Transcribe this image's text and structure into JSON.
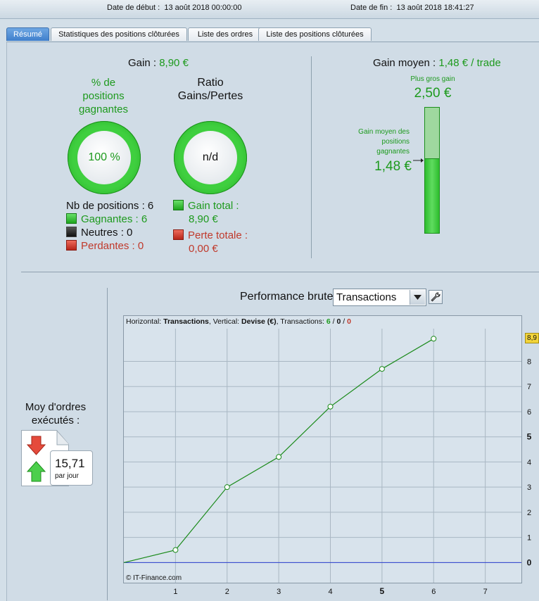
{
  "header": {
    "start_label": "Date de début :",
    "start_value": "13 août 2018 00:00:00",
    "end_label": "Date de fin :",
    "end_value": "13 août 2018 18:41:27"
  },
  "tabs": [
    {
      "label": "Résumé",
      "active": true
    },
    {
      "label": "Statistiques des positions clôturées",
      "active": false
    },
    {
      "label": "Liste des ordres",
      "active": false
    },
    {
      "label": "Liste des positions clôturées",
      "active": false
    }
  ],
  "summary": {
    "gain_label": "Gain :",
    "gain_value": "8,90 €",
    "win_pct_title": [
      "% de",
      "positions",
      "gagnantes"
    ],
    "win_pct_value": "100 %",
    "ratio_title": [
      "Ratio",
      "Gains/Pertes"
    ],
    "ratio_value": "n/d",
    "nb_positions_label": "Nb de positions :",
    "nb_positions_value": "6",
    "gagnantes_label": "Gagnantes :",
    "gagnantes_value": "6",
    "neutres_label": "Neutres :",
    "neutres_value": "0",
    "perdantes_label": "Perdantes :",
    "perdantes_value": "0",
    "gain_total_label": "Gain total :",
    "gain_total_value": "8,90 €",
    "perte_totale_label": "Perte totale :",
    "perte_totale_value": "0,00 €"
  },
  "avg_gain": {
    "label": "Gain moyen :",
    "value": "1,48 € / trade",
    "max_label": "Plus gros gain",
    "max_value": "2,50 €",
    "avg_label": [
      "Gain moyen des",
      "positions",
      "gagnantes"
    ],
    "avg_value": "1,48 €",
    "fill_fraction": 0.592
  },
  "orders": {
    "title": [
      "Moy d'ordres",
      "exécutés :"
    ],
    "value": "15,71",
    "unit": "par jour"
  },
  "performance": {
    "title": "Performance brute",
    "select_value": "Transactions",
    "info_h": "Horizontal:",
    "info_h_val": "Transactions",
    "info_v": "Vertical:",
    "info_v_val": "Devise (€)",
    "info_t": "Transactions:",
    "info_win": "6",
    "info_neutral": "0",
    "info_lose": "0",
    "copyright": "© IT-Finance.com",
    "last_value_label": "8,9"
  },
  "chart_data": {
    "type": "line",
    "x": [
      0,
      1,
      2,
      3,
      4,
      5,
      6
    ],
    "series": [
      {
        "values": [
          0,
          0.5,
          3.0,
          4.2,
          6.2,
          7.7,
          8.9
        ],
        "color": "#1a8a1a"
      }
    ],
    "xlim": [
      0,
      7.7
    ],
    "ylim": [
      -0.8,
      9.3
    ],
    "xticks": [
      "1",
      "2",
      "3",
      "4",
      "5",
      "6",
      "7"
    ],
    "yticks": [
      "0",
      "1",
      "2",
      "3",
      "4",
      "5",
      "6",
      "7",
      "8"
    ],
    "baseline_color": "#2b3fd0",
    "grid": true
  }
}
